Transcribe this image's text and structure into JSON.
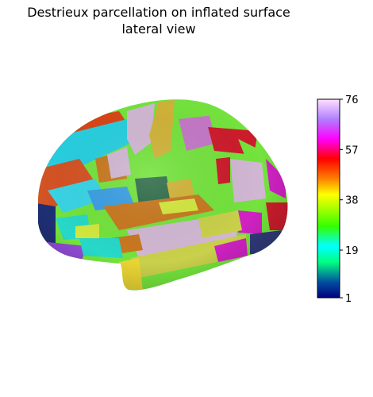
{
  "figure": {
    "title_line1": "Destrieux parcellation on inflated surface",
    "title_line2": "lateral view"
  },
  "colorbar": {
    "min": 1,
    "max": 76,
    "tick_labels": [
      "76",
      "57",
      "38",
      "19",
      "1"
    ],
    "tick_values": [
      76,
      57,
      38,
      19,
      1
    ],
    "colormap": "gist_ncar",
    "stops": [
      "#000080",
      "#00ff80",
      "#00ffff",
      "#33ff00",
      "#aaff00",
      "#ffff00",
      "#ff8000",
      "#ff0000",
      "#ff00ff",
      "#b080ff",
      "#ffd8ff"
    ]
  },
  "surface": {
    "background_color": "#ffffff",
    "region_colors": [
      "#d3e73f",
      "#cc1c2c",
      "#27cfe0",
      "#39d4e5",
      "#d1b7d3",
      "#d0b338",
      "#c578c6",
      "#d45324",
      "#d84517",
      "#3b9fe3",
      "#2f6d4a",
      "#74e33d",
      "#c9d04b",
      "#cf22c2",
      "#313a7b",
      "#1f2f74",
      "#8f4ad3",
      "#27d8c8",
      "#e9d434",
      "#c8781f"
    ]
  }
}
